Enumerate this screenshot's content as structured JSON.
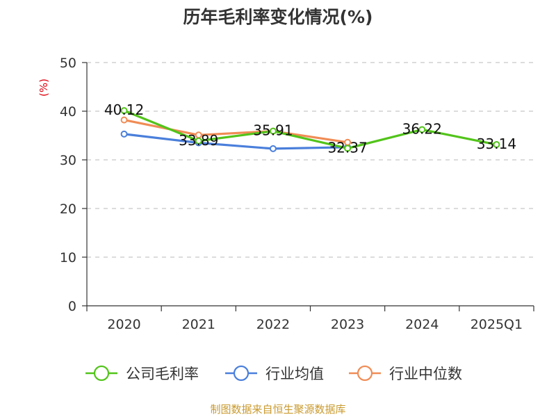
{
  "chart_data": {
    "type": "line",
    "title": "历年毛利率变化情况(%)",
    "ylabel": "(%)",
    "categories": [
      "2020",
      "2021",
      "2022",
      "2023",
      "2024",
      "2025Q1"
    ],
    "ylim": [
      0,
      50
    ],
    "yticks": [
      0,
      10,
      20,
      30,
      40,
      50
    ],
    "grid": true,
    "legend_position": "bottom",
    "series": [
      {
        "name": "公司毛利率",
        "color": "#52c41a",
        "values": [
          40.12,
          33.89,
          35.91,
          32.37,
          36.22,
          33.14
        ],
        "labels": [
          "40.12",
          "33.89",
          "35.91",
          "32.37",
          "36.22",
          "33.14"
        ]
      },
      {
        "name": "行业均值",
        "color": "#4a7fdb",
        "values": [
          35.3,
          33.5,
          32.3,
          32.6,
          null,
          null
        ]
      },
      {
        "name": "行业中位数",
        "color": "#f08c55",
        "values": [
          38.2,
          35.1,
          35.9,
          33.6,
          null,
          null
        ]
      }
    ]
  },
  "source": "制图数据来自恒生聚源数据库"
}
